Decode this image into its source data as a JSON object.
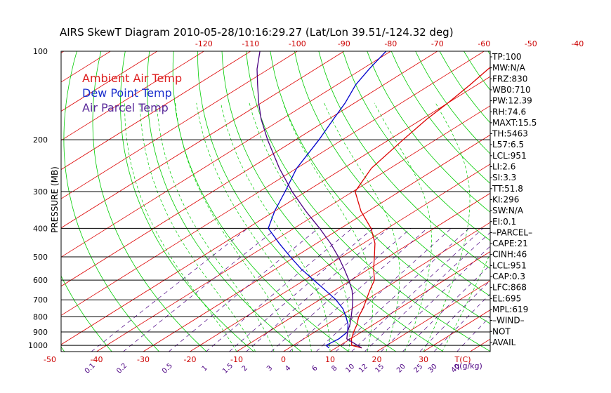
{
  "chart_data": {
    "type": "line",
    "subtype": "skew-t log-p diagram",
    "title": "AIRS SkewT Diagram 2010-05-28/10:16:29.27 (Lat/Lon 39.51/-124.32 deg)",
    "ylabel": "PRESSURE (MB)",
    "y_scale": "log (inverted)",
    "ylim": [
      1050,
      100
    ],
    "pressure_ticks": [
      "100",
      "200",
      "300",
      "400",
      "500",
      "600",
      "700",
      "800",
      "900",
      "1000"
    ],
    "pressure_values": [
      100,
      200,
      300,
      400,
      500,
      600,
      700,
      800,
      900,
      1000
    ],
    "top_temp_ticks": [
      "-120",
      "-110",
      "-100",
      "-90",
      "-80",
      "-70",
      "-60",
      "-50",
      "-40"
    ],
    "top_temp_values": [
      -120,
      -110,
      -100,
      -90,
      -80,
      -70,
      -60,
      -50,
      -40
    ],
    "bottom_temp_ticks": [
      "-50",
      "-40",
      "-30",
      "-20",
      "-10",
      "0",
      "10",
      "20",
      "30"
    ],
    "bottom_temp_values": [
      -50,
      -40,
      -30,
      -20,
      -10,
      0,
      10,
      20,
      30
    ],
    "bottom_unit_label": "T(C)",
    "mixing_ratio_ticks": [
      "0.1",
      "0.2",
      "0.5",
      "1",
      "1.5",
      "2",
      "3",
      "4",
      "6",
      "8",
      "10",
      "12",
      "15",
      "20",
      "25",
      "30",
      "40"
    ],
    "mixing_ratio_values": [
      0.1,
      0.2,
      0.5,
      1,
      1.5,
      2,
      3,
      4,
      6,
      8,
      10,
      12,
      15,
      20,
      25,
      30,
      40
    ],
    "mixing_ratio_unit_label": "q(g/kg)",
    "legend": [
      {
        "name": "Ambient Air Temp",
        "color": "#dd2020"
      },
      {
        "name": "Dew Point Temp",
        "color": "#1a2ecc"
      },
      {
        "name": "Air Parcel Temp",
        "color": "#5a2a9a"
      }
    ],
    "series": [
      {
        "name": "Ambient Air Temp",
        "color": "#dd0000",
        "points": [
          [
            1020,
            15.5
          ],
          [
            1000,
            12.5
          ],
          [
            950,
            10.2
          ],
          [
            900,
            8.3
          ],
          [
            850,
            6.5
          ],
          [
            800,
            4.2
          ],
          [
            750,
            2.3
          ],
          [
            700,
            0.0
          ],
          [
            650,
            -2.5
          ],
          [
            600,
            -5.0
          ],
          [
            550,
            -9.0
          ],
          [
            500,
            -13.0
          ],
          [
            450,
            -17.5
          ],
          [
            400,
            -23.5
          ],
          [
            350,
            -31.5
          ],
          [
            300,
            -39.5
          ],
          [
            250,
            -44.0
          ],
          [
            200,
            -47.0
          ],
          [
            170,
            -49.0
          ],
          [
            150,
            -50.0
          ],
          [
            130,
            -51.5
          ],
          [
            115,
            -53.0
          ],
          [
            100,
            -54.0
          ]
        ]
      },
      {
        "name": "Dew Point Temp",
        "color": "#0000cc",
        "points": [
          [
            1020,
            8.5
          ],
          [
            1000,
            7.0
          ],
          [
            950,
            7.5
          ],
          [
            900,
            7.0
          ],
          [
            850,
            4.6
          ],
          [
            800,
            1.5
          ],
          [
            750,
            -2.0
          ],
          [
            700,
            -6.5
          ],
          [
            650,
            -12.0
          ],
          [
            600,
            -18.0
          ],
          [
            550,
            -24.5
          ],
          [
            500,
            -31.0
          ],
          [
            450,
            -38.0
          ],
          [
            400,
            -45.5
          ],
          [
            350,
            -50.0
          ],
          [
            300,
            -54.5
          ],
          [
            250,
            -60.0
          ],
          [
            200,
            -65.0
          ],
          [
            170,
            -69.0
          ],
          [
            150,
            -72.0
          ],
          [
            130,
            -76.0
          ],
          [
            115,
            -78.5
          ],
          [
            100,
            -81.0
          ]
        ]
      },
      {
        "name": "Air Parcel Temp",
        "color": "#4b0082",
        "points": [
          [
            1020,
            15.5
          ],
          [
            950,
            9.2
          ],
          [
            900,
            7.0
          ],
          [
            850,
            5.0
          ],
          [
            800,
            2.6
          ],
          [
            750,
            0.0
          ],
          [
            700,
            -2.9
          ],
          [
            650,
            -6.3
          ],
          [
            600,
            -10.5
          ],
          [
            550,
            -15.3
          ],
          [
            500,
            -20.7
          ],
          [
            450,
            -27.0
          ],
          [
            400,
            -34.5
          ],
          [
            350,
            -43.3
          ],
          [
            300,
            -53.0
          ],
          [
            250,
            -63.7
          ],
          [
            200,
            -76.0
          ],
          [
            170,
            -84.5
          ],
          [
            150,
            -90.5
          ],
          [
            130,
            -97.0
          ],
          [
            115,
            -102.5
          ],
          [
            100,
            -108.0
          ]
        ]
      }
    ],
    "wind_barbs": []
  },
  "stats": [
    "TP:100",
    "MW:N/A",
    "FRZ:830",
    "WB0:710",
    "PW:12.39",
    "RH:74.6",
    "MAXT:15.5",
    "TH:5463",
    "L57:6.5",
    "LCL:951",
    "LI:2.6",
    "SI:3.3",
    "TT:51.8",
    "KI:296",
    "SW:N/A",
    "EI:0.1",
    "–PARCEL–",
    "CAPE:21",
    "CINH:46",
    "LCL:951",
    "CAP:0.3",
    "LFC:868",
    "EL:695",
    "MPL:619",
    "–WIND–",
    "NOT",
    "AVAIL"
  ],
  "colors": {
    "temp_lines": "#dd0000",
    "dry_adiabats": "#00cc00",
    "mixing_ratio": "#4b0082",
    "moist_adiabats": "#00cc00",
    "isobars": "#000000"
  }
}
